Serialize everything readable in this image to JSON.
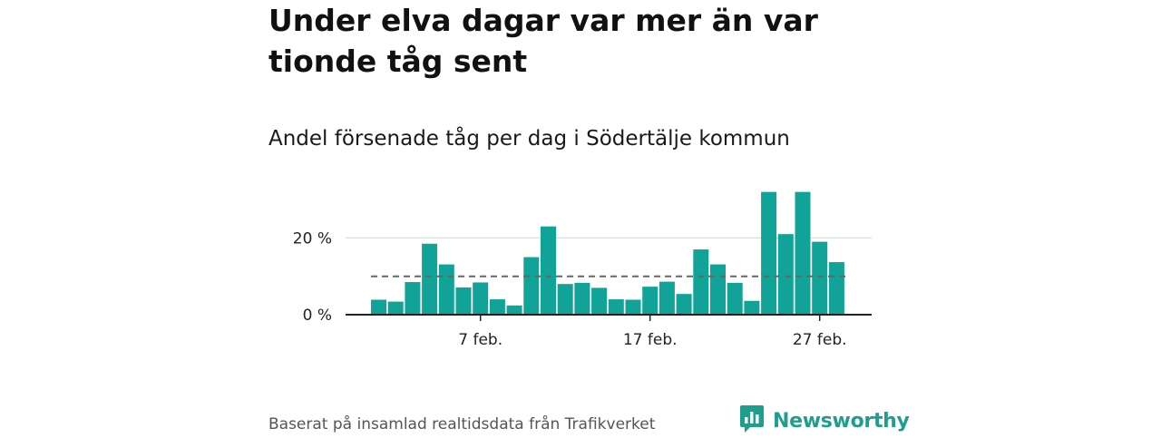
{
  "header": {
    "title": "Under elva dagar var mer än var tionde tåg sent",
    "subtitle": "Andel försenade tåg per dag i Södertälje kommun"
  },
  "footer": {
    "source": "Baserat på insamlad realtidsdata från Trafikverket",
    "brand": "Newsworthy",
    "brand_icon": "bar-chart-speech-bubble-icon"
  },
  "colors": {
    "bar": "#11a397",
    "reference_line": "#666666",
    "grid": "#dddddd",
    "axis": "#222222",
    "brand": "#1f9e8d"
  },
  "chart_data": {
    "type": "bar",
    "title": "Andel försenade tåg per dag i Södertälje kommun",
    "categories": [
      "1 feb.",
      "2 feb.",
      "3 feb.",
      "4 feb.",
      "5 feb.",
      "6 feb.",
      "7 feb.",
      "8 feb.",
      "9 feb.",
      "10 feb.",
      "11 feb.",
      "12 feb.",
      "13 feb.",
      "14 feb.",
      "15 feb.",
      "16 feb.",
      "17 feb.",
      "18 feb.",
      "19 feb.",
      "20 feb.",
      "21 feb.",
      "22 feb.",
      "23 feb.",
      "24 feb.",
      "25 feb.",
      "26 feb.",
      "27 feb.",
      "28 feb."
    ],
    "values": [
      3.9,
      3.4,
      8.5,
      18.5,
      13.1,
      7.1,
      8.4,
      4.0,
      2.4,
      15.0,
      23.0,
      8.0,
      8.3,
      7.0,
      4.0,
      3.9,
      7.3,
      8.6,
      5.4,
      17.0,
      13.1,
      8.3,
      3.6,
      32.0,
      21.0,
      32.0,
      19.0,
      13.7
    ],
    "reference_line": {
      "value": 10,
      "style": "dashed"
    },
    "y_ticks": [
      0,
      20
    ],
    "y_tick_labels": [
      "0 %",
      "20 %"
    ],
    "x_tick_labels": [
      {
        "category": "7 feb.",
        "label": "7 feb."
      },
      {
        "category": "17 feb.",
        "label": "17 feb."
      },
      {
        "category": "27 feb.",
        "label": "27 feb."
      }
    ],
    "ylim": [
      0,
      32
    ],
    "xlabel": "",
    "ylabel": "",
    "grid": true,
    "legend": "none"
  }
}
